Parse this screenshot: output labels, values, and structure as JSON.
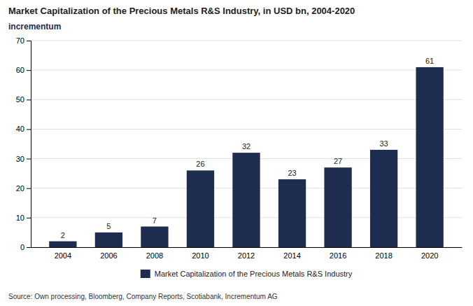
{
  "chart_data": {
    "type": "bar",
    "title": "Market Capitalization of the Precious Metals R&S Industry, in USD bn, 2004-2020",
    "categories": [
      "2004",
      "2006",
      "2008",
      "2010",
      "2012",
      "2014",
      "2016",
      "2018",
      "2020"
    ],
    "series": [
      {
        "name": "Market Capitalization of the Precious Metals R&S Industry",
        "color": "#1e2d4f",
        "values": [
          2,
          5,
          7,
          26,
          32,
          23,
          27,
          33,
          61
        ]
      }
    ],
    "ylim": [
      0,
      70
    ],
    "yticks": [
      0,
      10,
      20,
      30,
      40,
      50,
      60,
      70
    ],
    "grid": true,
    "legend": "bottom",
    "data_labels": true,
    "annotations": [
      {
        "text": "incrementum"
      },
      {
        "text": "Source: Own processing, Bloomberg, Company Reports, Scotiabank, Incrementum AG"
      }
    ]
  }
}
